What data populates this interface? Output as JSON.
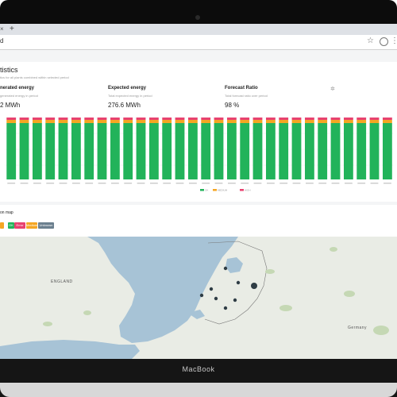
{
  "device": {
    "brand": "MacBook"
  },
  "browser": {
    "tab_close": "×",
    "new_tab": "+",
    "url": "d",
    "star": "☆",
    "menu": "⋮"
  },
  "statistics": {
    "title": "tistics",
    "subtitle": "tics for all plants combined within selected period",
    "generated": {
      "title": "nerated energy",
      "desc": "generated energy in period",
      "value": "2 MWh"
    },
    "expected": {
      "title": "Expected energy",
      "desc": "Total expected energy in period",
      "value": "276.6 MWh"
    },
    "ratio": {
      "title": "Forecast Ratio",
      "desc": "Total forecast ratio over period",
      "value": "98 %"
    },
    "settings_icon": "gear-icon"
  },
  "chart_data": {
    "type": "bar",
    "stacked": true,
    "bars": 30,
    "series": [
      {
        "name": "OK",
        "color": "#22b35a"
      },
      {
        "name": "MEDIUM",
        "color": "#f5a623"
      },
      {
        "name": "HIGH",
        "color": "#e8416f"
      }
    ],
    "legend_position": "bottom"
  },
  "map_section": {
    "title": "on map",
    "legend": [
      {
        "label": "",
        "color": "#f5a623"
      },
      {
        "label": "OK",
        "color": "#22b35a"
      },
      {
        "label": "Error",
        "color": "#e8416f"
      },
      {
        "label": "Medium",
        "color": "#f5a623"
      },
      {
        "label": "Unknown",
        "color": "#6b7f8e"
      }
    ],
    "labels": {
      "england": "ENGLAND",
      "germany": "Germany"
    }
  }
}
